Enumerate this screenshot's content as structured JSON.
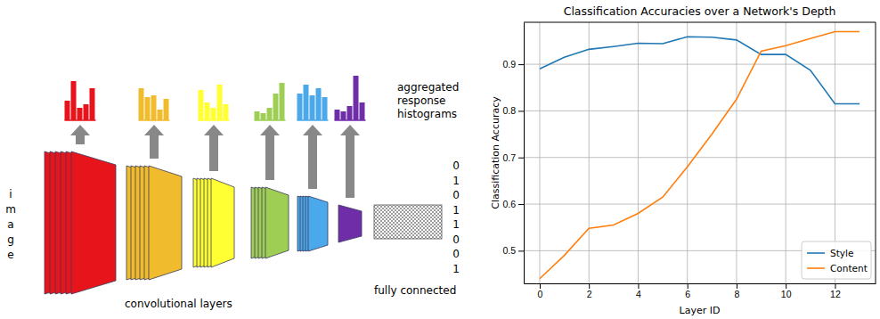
{
  "diagram": {
    "image_label": "image",
    "histogram_label": [
      "aggregated",
      "response",
      "histograms"
    ],
    "conv_label": "convolutional layers",
    "fc_label": "fully connected",
    "output_bits": [
      "0",
      "1",
      "0",
      "1",
      "1",
      "0",
      "0",
      "1"
    ]
  },
  "chart_data": {
    "type": "line",
    "title": "Classification Accuracies over a Network's Depth",
    "x_label": "Layer ID",
    "y_label": "Classification Accuracy",
    "x": [
      0,
      1,
      2,
      3,
      4,
      5,
      6,
      7,
      8,
      9,
      10,
      11,
      12,
      13
    ],
    "series": [
      {
        "name": "Style",
        "color": "#1f77b4",
        "values": [
          0.89,
          0.915,
          0.932,
          0.938,
          0.945,
          0.944,
          0.959,
          0.958,
          0.952,
          0.921,
          0.921,
          0.887,
          0.815,
          0.815
        ]
      },
      {
        "name": "Content",
        "color": "#ff7f0e",
        "values": [
          0.44,
          0.49,
          0.548,
          0.555,
          0.58,
          0.615,
          0.68,
          0.75,
          0.825,
          0.928,
          0.94,
          0.955,
          0.97,
          0.97
        ]
      }
    ],
    "xlim": [
      -0.65,
      13.65
    ],
    "xticks": [
      0,
      2,
      4,
      6,
      8,
      10,
      12
    ],
    "ylim": [
      0.43,
      0.99
    ],
    "yticks": [
      0.5,
      0.6,
      0.7,
      0.8,
      0.9
    ],
    "grid": true,
    "legend": "lower right"
  }
}
